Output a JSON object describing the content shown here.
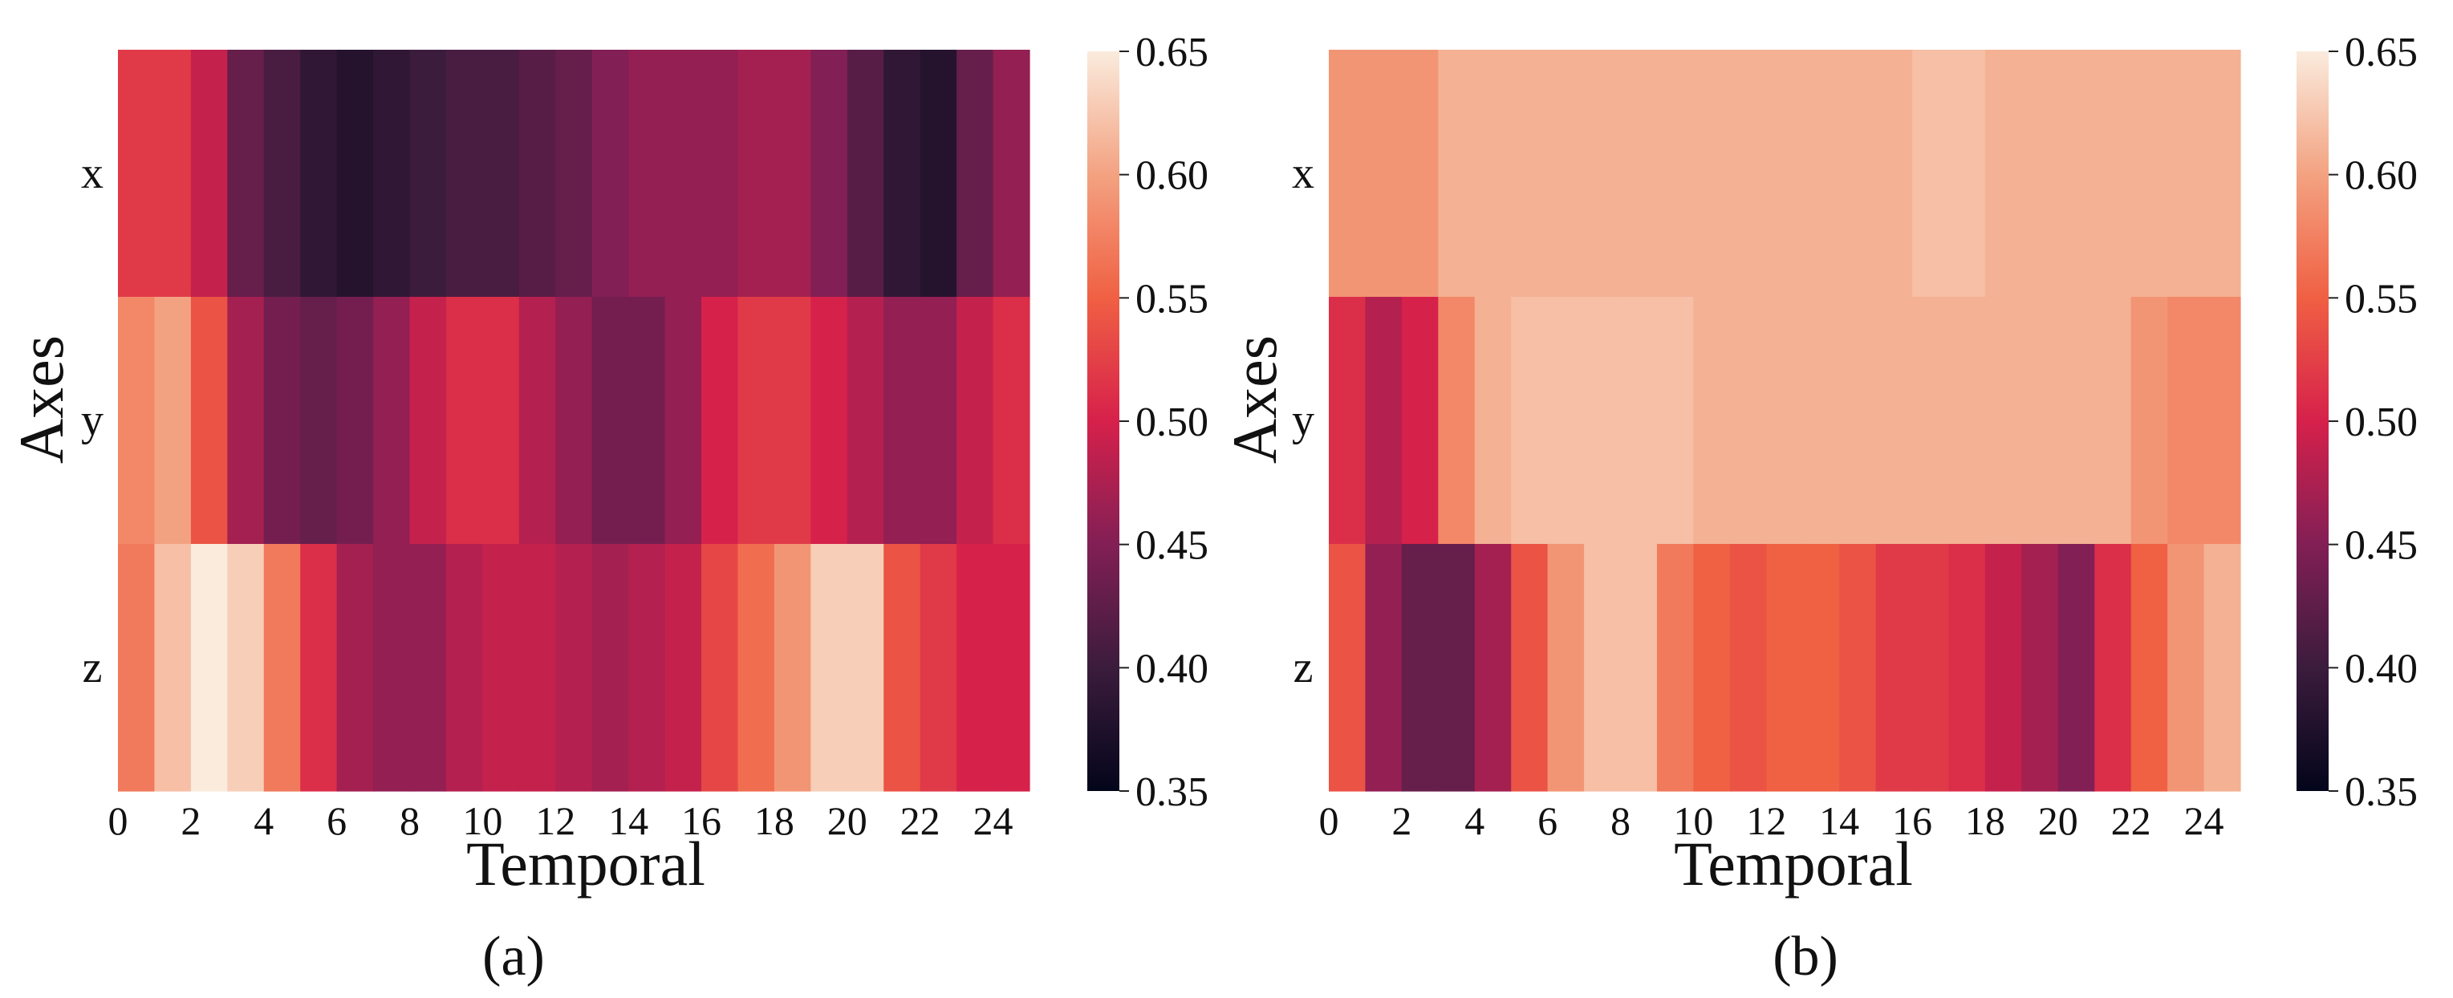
{
  "chart_data": [
    {
      "type": "heatmap",
      "title": "",
      "subcaption": "(a)",
      "xlabel": "Temporal",
      "ylabel": "Axes",
      "rows": [
        "x",
        "y",
        "z"
      ],
      "columns": [
        0,
        1,
        2,
        3,
        4,
        5,
        6,
        7,
        8,
        9,
        10,
        11,
        12,
        13,
        14,
        15,
        16,
        17,
        18,
        19,
        20,
        21,
        22,
        23,
        24
      ],
      "x_tick_labels": [
        "0",
        "2",
        "4",
        "6",
        "8",
        "10",
        "12",
        "14",
        "16",
        "18",
        "20",
        "22",
        "24"
      ],
      "values": [
        [
          0.52,
          0.52,
          0.49,
          0.43,
          0.41,
          0.39,
          0.38,
          0.39,
          0.4,
          0.41,
          0.41,
          0.42,
          0.43,
          0.45,
          0.46,
          0.46,
          0.46,
          0.47,
          0.47,
          0.45,
          0.42,
          0.39,
          0.38,
          0.43,
          0.46
        ],
        [
          0.58,
          0.6,
          0.54,
          0.47,
          0.44,
          0.43,
          0.44,
          0.46,
          0.49,
          0.51,
          0.51,
          0.48,
          0.46,
          0.44,
          0.44,
          0.46,
          0.5,
          0.52,
          0.52,
          0.5,
          0.48,
          0.46,
          0.46,
          0.49,
          0.51
        ],
        [
          0.57,
          0.62,
          0.65,
          0.63,
          0.57,
          0.51,
          0.47,
          0.46,
          0.46,
          0.48,
          0.49,
          0.49,
          0.48,
          0.47,
          0.48,
          0.49,
          0.53,
          0.56,
          0.59,
          0.63,
          0.63,
          0.54,
          0.52,
          0.5,
          0.5
        ]
      ],
      "colorbar": {
        "min": 0.35,
        "max": 0.65,
        "ticks": [
          "0.65",
          "0.60",
          "0.55",
          "0.50",
          "0.45",
          "0.40",
          "0.35"
        ],
        "colormap": "rocket"
      },
      "grid": false,
      "legend": "colorbar right"
    },
    {
      "type": "heatmap",
      "title": "",
      "subcaption": "(b)",
      "xlabel": "Temporal",
      "ylabel": "Axes",
      "rows": [
        "x",
        "y",
        "z"
      ],
      "columns": [
        0,
        1,
        2,
        3,
        4,
        5,
        6,
        7,
        8,
        9,
        10,
        11,
        12,
        13,
        14,
        15,
        16,
        17,
        18,
        19,
        20,
        21,
        22,
        23,
        24
      ],
      "x_tick_labels": [
        "0",
        "2",
        "4",
        "6",
        "8",
        "10",
        "12",
        "14",
        "16",
        "18",
        "20",
        "22",
        "24"
      ],
      "values": [
        [
          0.59,
          0.59,
          0.59,
          0.61,
          0.61,
          0.61,
          0.61,
          0.61,
          0.61,
          0.61,
          0.61,
          0.61,
          0.61,
          0.61,
          0.61,
          0.61,
          0.62,
          0.62,
          0.61,
          0.61,
          0.61,
          0.61,
          0.61,
          0.61,
          0.61
        ],
        [
          0.51,
          0.48,
          0.5,
          0.58,
          0.61,
          0.62,
          0.62,
          0.62,
          0.62,
          0.62,
          0.61,
          0.61,
          0.61,
          0.61,
          0.61,
          0.61,
          0.61,
          0.61,
          0.61,
          0.61,
          0.61,
          0.61,
          0.59,
          0.58,
          0.58
        ],
        [
          0.54,
          0.46,
          0.43,
          0.43,
          0.47,
          0.54,
          0.59,
          0.62,
          0.62,
          0.57,
          0.55,
          0.54,
          0.55,
          0.55,
          0.54,
          0.52,
          0.52,
          0.51,
          0.49,
          0.47,
          0.45,
          0.51,
          0.55,
          0.59,
          0.61
        ]
      ],
      "colorbar": {
        "min": 0.35,
        "max": 0.65,
        "ticks": [
          "0.65",
          "0.60",
          "0.55",
          "0.50",
          "0.45",
          "0.40",
          "0.35"
        ],
        "colormap": "rocket"
      },
      "grid": false,
      "legend": "colorbar right"
    }
  ]
}
